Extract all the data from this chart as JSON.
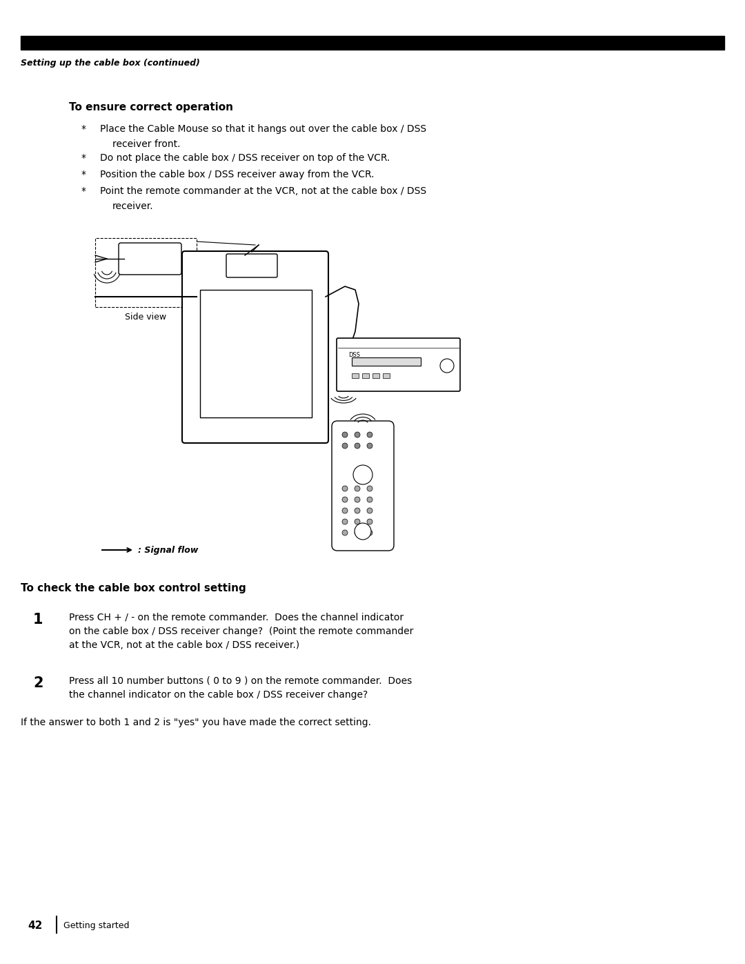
{
  "bg_color": "#ffffff",
  "page_width": 10.8,
  "page_height": 13.97,
  "header_bar_color": "#000000",
  "header_text": "Setting up the cable box (continued)",
  "section1_title": "To ensure correct operation",
  "bullet1_line1": "Place the Cable Mouse so that it hangs out over the cable box / DSS",
  "bullet1_line2": "receiver front.",
  "bullet2": "Do not place the cable box / DSS receiver on top of the VCR.",
  "bullet3": "Position the cable box / DSS receiver away from the VCR.",
  "bullet4_line1": "Point the remote commander at the VCR, not at the cable box / DSS",
  "bullet4_line2": "receiver.",
  "side_view_label": "Side view",
  "signal_flow_label": ": Signal flow",
  "section2_title": "To check the cable box control setting",
  "step1_num": "1",
  "step1_text_line1": "Press CH + / - on the remote commander.  Does the channel indicator",
  "step1_text_line2": "on the cable box / DSS receiver change?  (Point the remote commander",
  "step1_text_line3": "at the VCR, not at the cable box / DSS receiver.)",
  "step2_num": "2",
  "step2_text_line1": "Press all 10 number buttons ( 0 to 9 ) on the remote commander.  Does",
  "step2_text_line2": "the channel indicator on the cable box / DSS receiver change?",
  "footer_text": "If the answer to both 1 and 2 is \"yes\" you have made the correct setting.",
  "page_num": "42",
  "getting_started": "Getting started"
}
